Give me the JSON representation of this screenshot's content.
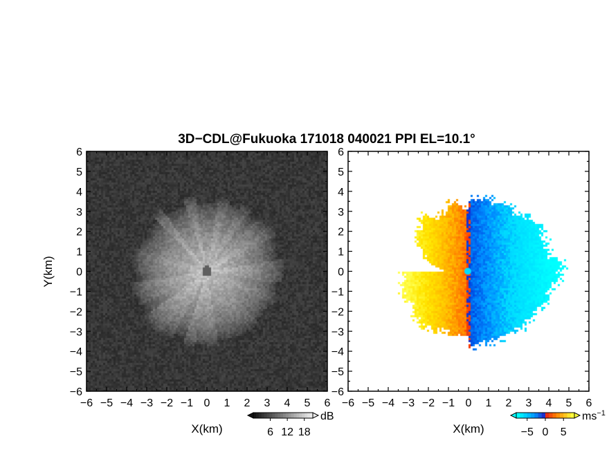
{
  "chart_data": [
    {
      "type": "heatmap",
      "title": "3D−CDL@Fukuoka 171018 040021 PPI EL=10.1°",
      "panel": "left",
      "xlabel": "X(km)",
      "ylabel": "Y(km)",
      "xlim": [
        -6,
        6
      ],
      "ylim": [
        -6,
        6
      ],
      "x_ticks": [
        "−6",
        "−5",
        "−4",
        "−3",
        "−2",
        "−1",
        "0",
        "1",
        "2",
        "3",
        "4",
        "5",
        "6"
      ],
      "y_ticks": [
        "6",
        "5",
        "4",
        "3",
        "2",
        "1",
        "0",
        "−1",
        "−2",
        "−3",
        "−4",
        "−5",
        "−6"
      ],
      "colorbar": {
        "unit": "dB",
        "ticks": [
          "6",
          "12",
          "18"
        ],
        "range": [
          0,
          21
        ]
      }
    },
    {
      "type": "heatmap",
      "panel": "right",
      "xlabel": "X(km)",
      "ylabel": "",
      "xlim": [
        -6,
        6
      ],
      "ylim": [
        -6,
        6
      ],
      "x_ticks": [
        "−6",
        "−5",
        "−4",
        "−3",
        "−2",
        "−1",
        "0",
        "1",
        "2",
        "3",
        "4",
        "5",
        "6"
      ],
      "y_ticks": [
        "6",
        "5",
        "4",
        "3",
        "2",
        "1",
        "0",
        "−1",
        "−2",
        "−3",
        "−4",
        "−5",
        "−6"
      ],
      "colorbar": {
        "unit": "ms",
        "unit_sup": "−1",
        "ticks": [
          "−5",
          "0",
          "5"
        ],
        "range": [
          -8,
          8
        ]
      }
    }
  ],
  "colors": {
    "axis": "#000000",
    "background": "#ffffff"
  }
}
